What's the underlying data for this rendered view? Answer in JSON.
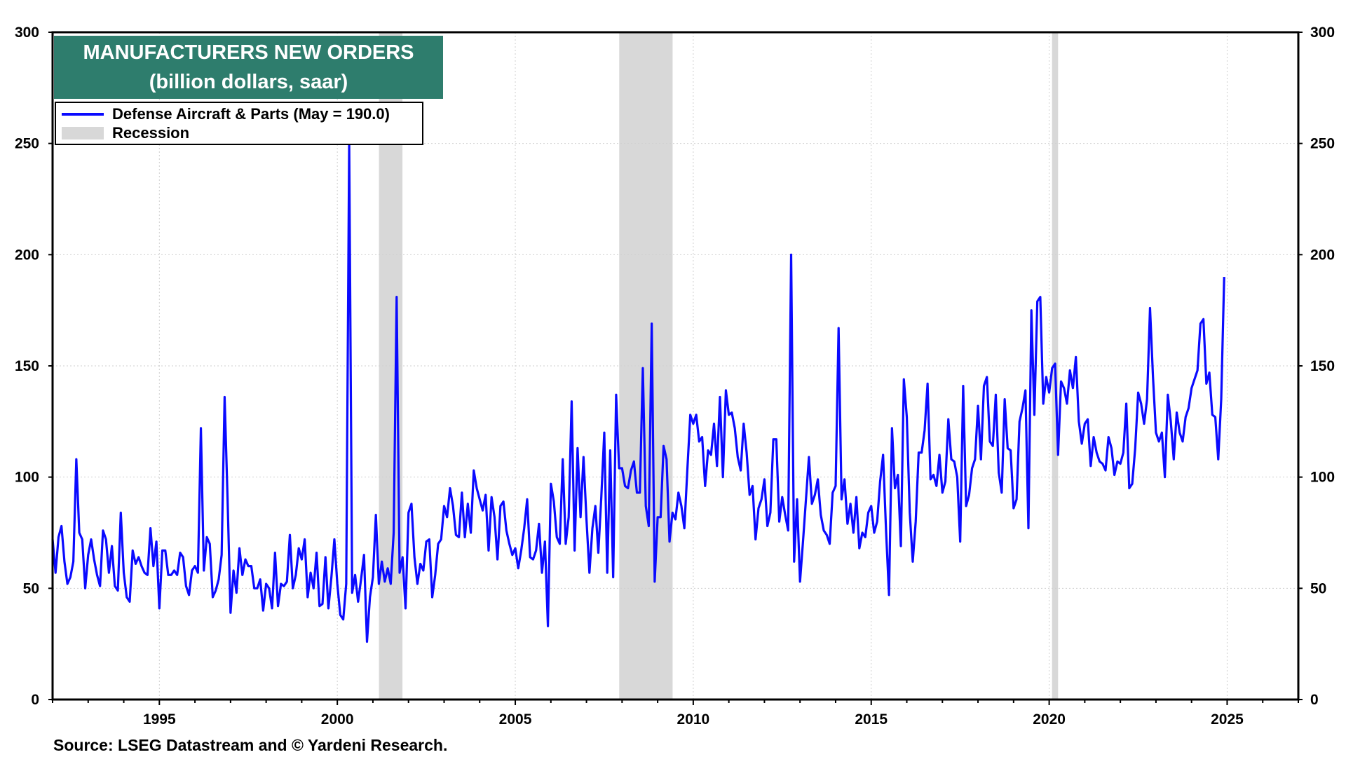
{
  "source": "Source: LSEG Datastream and © Yardeni Research.",
  "colors": {
    "line": "#0a0aff",
    "recession": "#d8d8d8",
    "title_bg": "#2e7d6d",
    "title_text": "#ffffff"
  },
  "chart_data": {
    "type": "line",
    "title": "MANUFACTURERS NEW ORDERS",
    "subtitle": "(billion dollars, saar)",
    "xlabel": "",
    "ylabel": "",
    "xlim": [
      1992.0,
      2027.0
    ],
    "ylim": [
      0,
      300
    ],
    "yticks": [
      0,
      50,
      100,
      150,
      200,
      250,
      300
    ],
    "xticks": [
      1995,
      2000,
      2005,
      2010,
      2015,
      2020,
      2025
    ],
    "grid": true,
    "legend_position": "top-left",
    "legend": [
      {
        "label": "Defense Aircraft & Parts (May = 190.0)",
        "kind": "line"
      },
      {
        "label": "Recession",
        "kind": "area"
      }
    ],
    "recessions": [
      [
        2001.17,
        2001.83
      ],
      [
        2007.92,
        2009.42
      ],
      [
        2020.08,
        2020.25
      ]
    ],
    "series": [
      {
        "name": "Defense Aircraft & Parts",
        "start": "1992-01",
        "frequency": "monthly",
        "values": [
          72,
          57,
          73,
          78,
          62,
          52,
          55,
          62,
          108,
          75,
          72,
          50,
          65,
          72,
          63,
          56,
          51,
          76,
          72,
          57,
          69,
          51,
          49,
          84,
          57,
          46,
          44,
          67,
          61,
          64,
          60,
          57,
          56,
          77,
          60,
          71,
          41,
          67,
          67,
          56,
          56,
          58,
          56,
          66,
          64,
          51,
          47,
          58,
          60,
          57,
          122,
          58,
          73,
          70,
          46,
          49,
          54,
          65,
          136,
          90,
          39,
          58,
          48,
          68,
          56,
          63,
          60,
          60,
          50,
          50,
          54,
          40,
          52,
          50,
          41,
          66,
          42,
          52,
          51,
          53,
          74,
          50,
          56,
          68,
          63,
          72,
          46,
          57,
          50,
          66,
          42,
          43,
          64,
          41,
          55,
          72,
          52,
          38,
          36,
          52,
          250,
          48,
          56,
          44,
          54,
          65,
          26,
          46,
          55,
          83,
          52,
          62,
          53,
          59,
          52,
          75,
          181,
          57,
          64,
          41,
          84,
          88,
          64,
          52,
          61,
          58,
          71,
          72,
          46,
          56,
          70,
          72,
          87,
          82,
          95,
          87,
          74,
          73,
          93,
          73,
          88,
          75,
          103,
          95,
          90,
          85,
          92,
          67,
          91,
          82,
          63,
          87,
          89,
          76,
          70,
          65,
          68,
          59,
          67,
          77,
          90,
          64,
          63,
          67,
          79,
          57,
          71,
          33,
          97,
          89,
          73,
          70,
          108,
          70,
          82,
          134,
          67,
          113,
          82,
          109,
          81,
          57,
          77,
          87,
          66,
          91,
          120,
          57,
          112,
          55,
          137,
          104,
          104,
          96,
          95,
          103,
          107,
          93,
          93,
          149,
          87,
          78,
          169,
          53,
          82,
          82,
          114,
          108,
          71,
          84,
          81,
          93,
          87,
          77,
          103,
          128,
          124,
          128,
          116,
          118,
          96,
          112,
          110,
          124,
          105,
          136,
          100,
          139,
          128,
          129,
          122,
          109,
          103,
          124,
          111,
          92,
          96,
          72,
          86,
          90,
          99,
          78,
          84,
          117,
          117,
          80,
          91,
          83,
          76,
          200,
          62,
          90,
          53,
          71,
          90,
          109,
          88,
          92,
          99,
          83,
          76,
          74,
          70,
          93,
          96,
          167,
          90,
          99,
          79,
          88,
          75,
          91,
          68,
          75,
          73,
          84,
          87,
          75,
          80,
          98,
          110,
          76,
          47,
          122,
          95,
          101,
          69,
          144,
          127,
          84,
          62,
          80,
          111,
          111,
          121,
          142,
          99,
          101,
          96,
          110,
          93,
          98,
          126,
          108,
          107,
          100,
          71,
          141,
          87,
          92,
          104,
          108,
          132,
          108,
          141,
          145,
          116,
          114,
          137,
          102,
          93,
          135,
          113,
          112,
          86,
          90,
          125,
          131,
          139,
          77,
          175,
          128,
          179,
          181,
          133,
          145,
          138,
          149,
          151,
          110,
          143,
          140,
          133,
          148,
          140,
          154,
          125,
          115,
          124,
          126,
          105,
          118,
          111,
          107,
          106,
          103,
          118,
          113,
          101,
          107,
          106,
          111,
          133,
          95,
          97,
          113,
          138,
          133,
          124,
          135,
          176,
          145,
          120,
          116,
          120,
          100,
          137,
          125,
          108,
          129,
          120,
          116,
          127,
          131,
          140,
          144,
          148,
          169,
          171,
          142,
          147,
          128,
          127,
          108,
          135,
          190
        ]
      }
    ]
  }
}
